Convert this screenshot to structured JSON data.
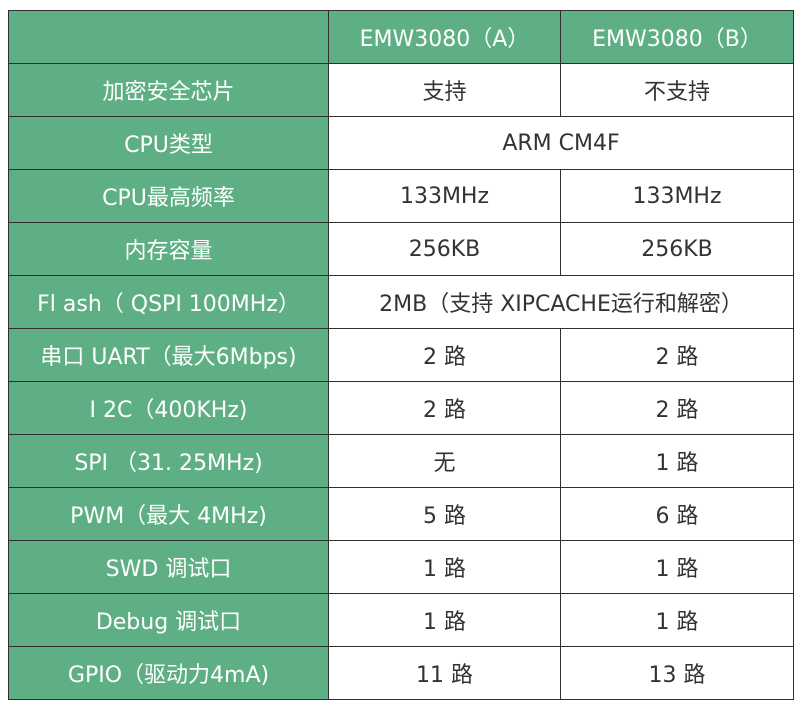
{
  "header": {
    "corner": "",
    "col_a": "EMW3080（A）",
    "col_b": "EMW3080（B）"
  },
  "rows": [
    {
      "label": "加密安全芯片",
      "a": "支持",
      "b": "不支持"
    },
    {
      "label": "CPU类型",
      "merged": "ARM CM4F"
    },
    {
      "label": "CPU最高频率",
      "a": "133MHz",
      "b": "133MHz"
    },
    {
      "label": "内存容量",
      "a": "256KB",
      "b": "256KB"
    },
    {
      "label": "Fl ash（ QSPI   100MHz）",
      "merged": "2MB（支持 XIPCACHE运行和解密）"
    },
    {
      "label": "串口 UART（最大6Mbps)",
      "a": "2 路",
      "b": "2 路"
    },
    {
      "label": "I 2C（400KHz)",
      "a": "2 路",
      "b": "2 路"
    },
    {
      "label": "SPI （31. 25MHz)",
      "a": "无",
      "b": "1 路"
    },
    {
      "label": "PWM（最大 4MHz)",
      "a": "5 路",
      "b": "6 路"
    },
    {
      "label": "SWD 调试口",
      "a": "1 路",
      "b": "1 路"
    },
    {
      "label": "Debug 调试口",
      "a": "1 路",
      "b": "1 路"
    },
    {
      "label": "GPIO（驱动力4mA)",
      "a": "11 路",
      "b": "13 路"
    }
  ],
  "colors": {
    "header_bg": "#5faf84",
    "label_bg": "#5faf84",
    "label_text": "#ffffff",
    "value_text": "#333333",
    "border": "#2f2f2f"
  }
}
